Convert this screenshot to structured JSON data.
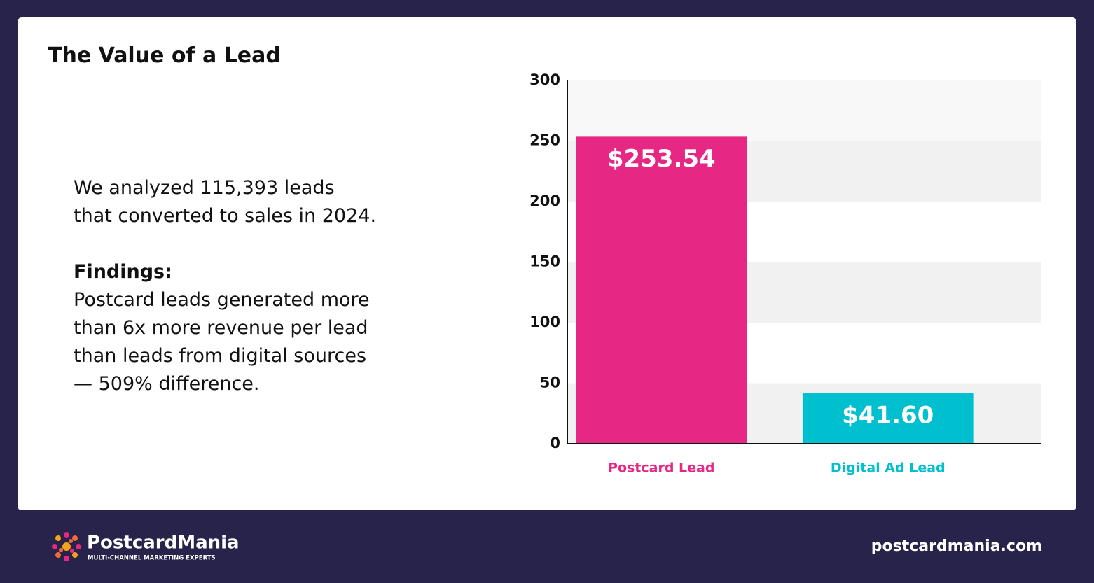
{
  "chart_data": {
    "type": "bar",
    "title": "The Value of a Lead",
    "categories": [
      "Postcard Lead",
      "Digital Ad Lead"
    ],
    "values": [
      253.54,
      41.6
    ],
    "value_labels": [
      "$253.54",
      "$41.60"
    ],
    "colors": [
      "#e62884",
      "#00bfcf"
    ],
    "ylim": [
      0,
      300
    ],
    "yticks": [
      0,
      50,
      100,
      150,
      200,
      250,
      300
    ],
    "grid": true
  },
  "text": {
    "intro": [
      "We analyzed 115,393 leads",
      "that converted to sales in 2024."
    ],
    "findings_heading": "Findings:",
    "findings": [
      "Postcard leads generated more",
      "than 6x more revenue per lead",
      "than leads from digital sources",
      "— 509% difference."
    ]
  },
  "footer": {
    "brand": "PostcardMania",
    "tagline": "MULTI-CHANNEL MARKETING EXPERTS",
    "url": "postcardmania.com"
  }
}
